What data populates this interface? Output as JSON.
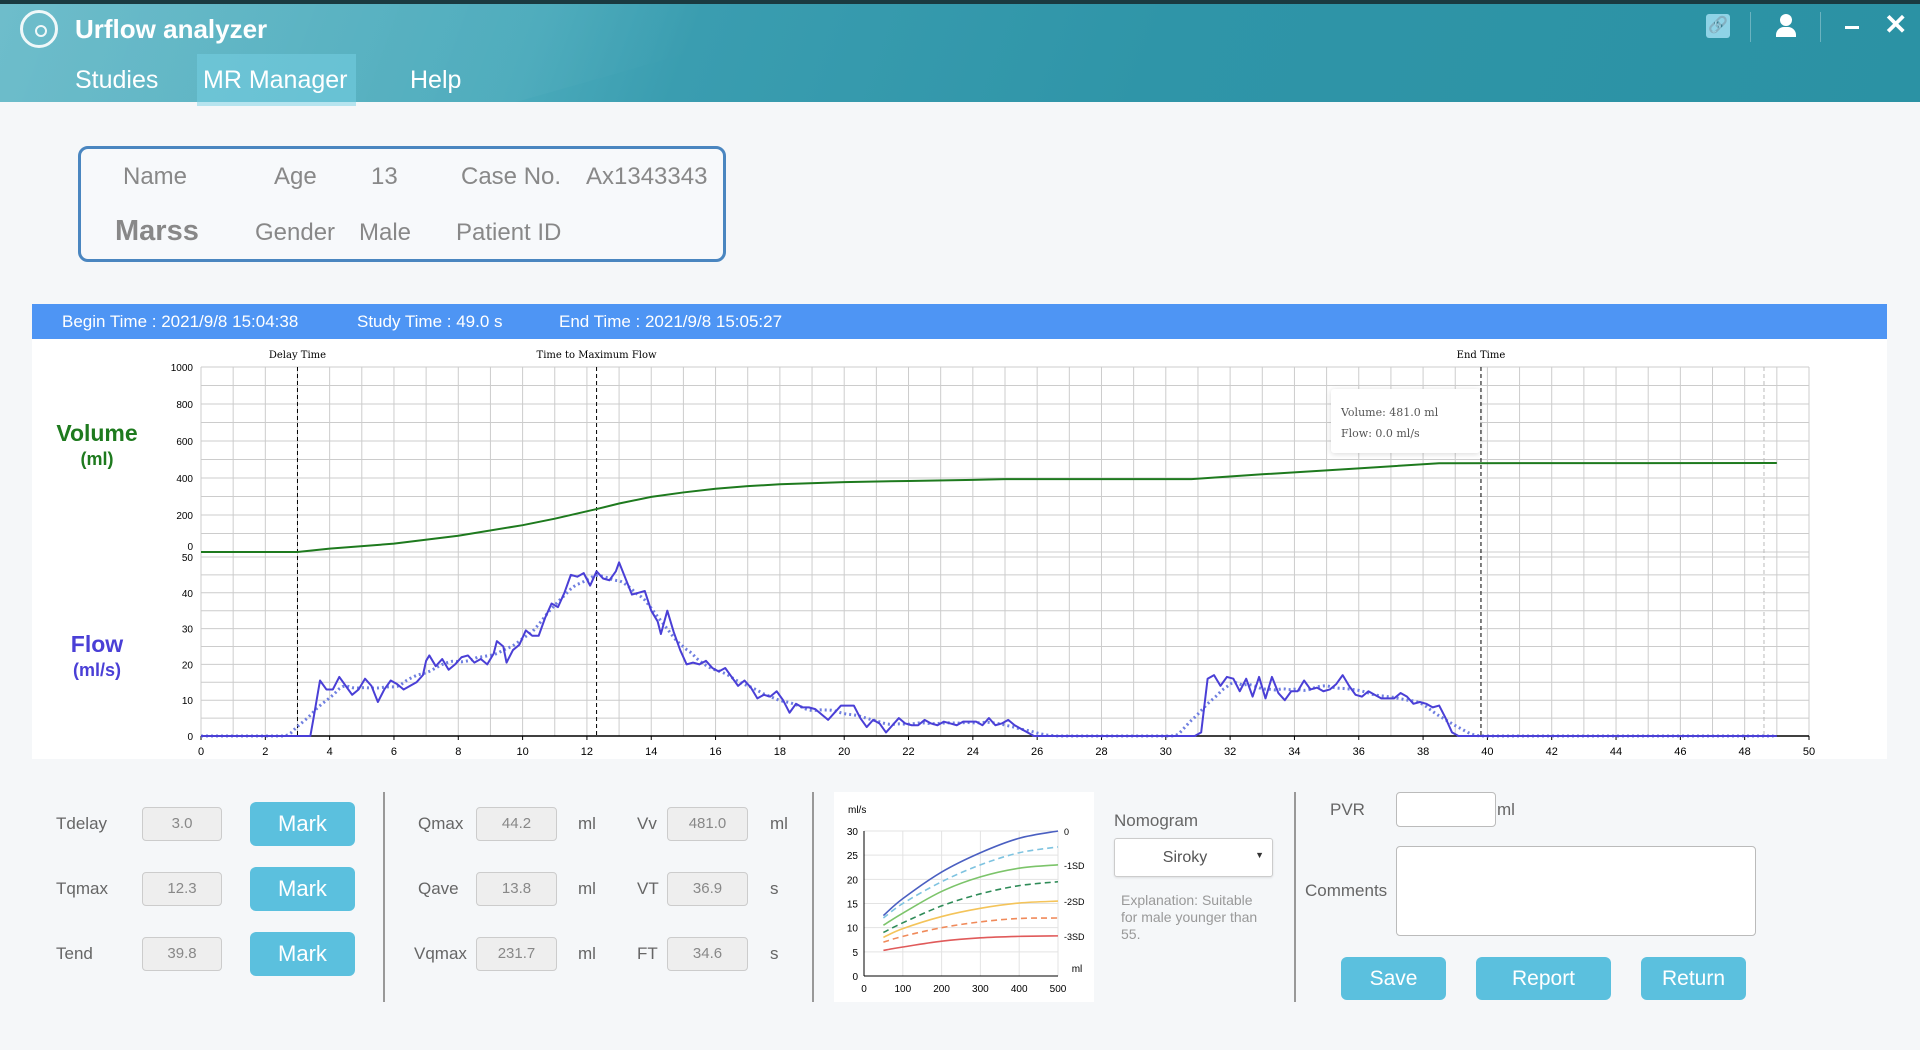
{
  "app": {
    "title": "Urflow analyzer",
    "logo_icon": "urflow-logo-icon"
  },
  "menu": [
    {
      "label": "Studies"
    },
    {
      "label": "MR Manager",
      "active": true
    },
    {
      "label": "Help"
    }
  ],
  "window_icons": [
    "link-icon",
    "user-icon",
    "minimize-icon",
    "close-icon"
  ],
  "patient": {
    "name_label": "Name",
    "name": "Marss",
    "age_label": "Age",
    "age": "13",
    "gender_label": "Gender",
    "gender": "Male",
    "case_label": "Case No.",
    "case_no": "Ax1343343",
    "pid_label": "Patient ID",
    "pid": ""
  },
  "info": {
    "begin": "Begin Time :  2021/9/8 15:04:38",
    "study": "Study Time :  49.0 s",
    "end": "End Time :  2021/9/8 15:05:27"
  },
  "axis_labels": {
    "volume": "Volume",
    "volume_unit": "(ml)",
    "flow": "Flow",
    "flow_unit": "(ml/s)"
  },
  "tooltip": {
    "volume": "Volume: 481.0 ml",
    "flow": "Flow: 0.0 ml/s"
  },
  "colors": {
    "volume": "#1e7a1e",
    "flow": "#4a3fd6",
    "flow_smooth": "#6f7fe0",
    "accent": "#5bc0de",
    "bar": "#4e95f4"
  },
  "chart_data": [
    {
      "type": "line",
      "xlim": [
        0,
        50
      ],
      "xticks": [
        0,
        2,
        4,
        6,
        8,
        10,
        12,
        14,
        16,
        18,
        20,
        22,
        24,
        26,
        28,
        30,
        32,
        34,
        36,
        38,
        40,
        42,
        44,
        46,
        48,
        50
      ],
      "grid": true,
      "markers": [
        {
          "label": "Delay Time",
          "x": 3.0
        },
        {
          "label": "Time to Maximum Flow",
          "x": 12.3
        },
        {
          "label": "End Time",
          "x": 39.8
        },
        {
          "label": "",
          "x": 48.6
        }
      ],
      "volume": {
        "ylim": [
          0,
          1000
        ],
        "yticks": [
          0,
          200,
          400,
          600,
          800,
          1000
        ],
        "points": [
          [
            0,
            0
          ],
          [
            3,
            0
          ],
          [
            4,
            18
          ],
          [
            6,
            45
          ],
          [
            8,
            88
          ],
          [
            10,
            145
          ],
          [
            11,
            180
          ],
          [
            12.3,
            232
          ],
          [
            13,
            262
          ],
          [
            14,
            298
          ],
          [
            15,
            322
          ],
          [
            16,
            342
          ],
          [
            17,
            356
          ],
          [
            18,
            366
          ],
          [
            20,
            378
          ],
          [
            22,
            384
          ],
          [
            24,
            390
          ],
          [
            25,
            394
          ],
          [
            30.8,
            394
          ],
          [
            33,
            420
          ],
          [
            36,
            452
          ],
          [
            38.5,
            480
          ],
          [
            49,
            481
          ]
        ]
      },
      "flow": {
        "ylim": [
          0,
          50
        ],
        "yticks": [
          0,
          10,
          20,
          30,
          40,
          50
        ],
        "points": [
          [
            0,
            0
          ],
          [
            3.4,
            0
          ],
          [
            3.5,
            5
          ],
          [
            3.7,
            15.5
          ],
          [
            3.9,
            13
          ],
          [
            4.1,
            13
          ],
          [
            4.3,
            16.5
          ],
          [
            4.5,
            14
          ],
          [
            4.7,
            11.5
          ],
          [
            4.9,
            13
          ],
          [
            5.1,
            16
          ],
          [
            5.3,
            14
          ],
          [
            5.5,
            9.5
          ],
          [
            5.7,
            13
          ],
          [
            5.9,
            15.5
          ],
          [
            6.1,
            14.5
          ],
          [
            6.3,
            13
          ],
          [
            6.5,
            14
          ],
          [
            6.7,
            15
          ],
          [
            6.9,
            17
          ],
          [
            7.0,
            21
          ],
          [
            7.1,
            22.5
          ],
          [
            7.3,
            19.5
          ],
          [
            7.5,
            21.5
          ],
          [
            7.7,
            18.5
          ],
          [
            7.9,
            20
          ],
          [
            8.1,
            22
          ],
          [
            8.3,
            22.5
          ],
          [
            8.5,
            20.5
          ],
          [
            8.7,
            21.5
          ],
          [
            8.9,
            20
          ],
          [
            9.1,
            23
          ],
          [
            9.2,
            26.5
          ],
          [
            9.4,
            25
          ],
          [
            9.5,
            20.5
          ],
          [
            9.7,
            24
          ],
          [
            9.9,
            25.5
          ],
          [
            10.1,
            29.5
          ],
          [
            10.3,
            28
          ],
          [
            10.5,
            28
          ],
          [
            10.7,
            33
          ],
          [
            10.9,
            37
          ],
          [
            11.1,
            36
          ],
          [
            11.3,
            40
          ],
          [
            11.5,
            45
          ],
          [
            11.7,
            44.5
          ],
          [
            11.9,
            45.5
          ],
          [
            12.1,
            42
          ],
          [
            12.3,
            46
          ],
          [
            12.5,
            44
          ],
          [
            12.7,
            43.5
          ],
          [
            12.9,
            46
          ],
          [
            13.0,
            48.5
          ],
          [
            13.2,
            44
          ],
          [
            13.4,
            39.5
          ],
          [
            13.6,
            40
          ],
          [
            13.8,
            40.5
          ],
          [
            14.0,
            35
          ],
          [
            14.2,
            32
          ],
          [
            14.3,
            28.5
          ],
          [
            14.5,
            35
          ],
          [
            14.7,
            29
          ],
          [
            14.9,
            24
          ],
          [
            15.1,
            20
          ],
          [
            15.3,
            20.5
          ],
          [
            15.5,
            20
          ],
          [
            15.7,
            21
          ],
          [
            15.9,
            19
          ],
          [
            16.1,
            18
          ],
          [
            16.3,
            19
          ],
          [
            16.5,
            16.5
          ],
          [
            16.7,
            14
          ],
          [
            16.9,
            15.5
          ],
          [
            17.1,
            13.5
          ],
          [
            17.3,
            10.5
          ],
          [
            17.5,
            11.5
          ],
          [
            17.7,
            11
          ],
          [
            17.9,
            12.5
          ],
          [
            18.1,
            10
          ],
          [
            18.3,
            6.5
          ],
          [
            18.5,
            9
          ],
          [
            18.7,
            8
          ],
          [
            18.9,
            8
          ],
          [
            19.1,
            7.5
          ],
          [
            19.3,
            6
          ],
          [
            19.5,
            4.5
          ],
          [
            19.7,
            6.5
          ],
          [
            19.9,
            8.5
          ],
          [
            20.1,
            8.5
          ],
          [
            20.3,
            8.5
          ],
          [
            20.5,
            5
          ],
          [
            20.7,
            2.5
          ],
          [
            20.9,
            4.5
          ],
          [
            21.1,
            3.5
          ],
          [
            21.3,
            1
          ],
          [
            21.5,
            3
          ],
          [
            21.7,
            5
          ],
          [
            21.9,
            3.5
          ],
          [
            22.1,
            3
          ],
          [
            22.3,
            3
          ],
          [
            22.5,
            4.5
          ],
          [
            22.7,
            3.5
          ],
          [
            22.9,
            3
          ],
          [
            23.1,
            4
          ],
          [
            23.3,
            3.5
          ],
          [
            23.5,
            3
          ],
          [
            23.7,
            4
          ],
          [
            23.9,
            4
          ],
          [
            24.1,
            4
          ],
          [
            24.3,
            3
          ],
          [
            24.5,
            5
          ],
          [
            24.7,
            3
          ],
          [
            24.9,
            3.5
          ],
          [
            25.1,
            4.5
          ],
          [
            25.3,
            3
          ],
          [
            25.5,
            2
          ],
          [
            25.9,
            0
          ],
          [
            30.9,
            0
          ],
          [
            31.1,
            1
          ],
          [
            31.3,
            16
          ],
          [
            31.5,
            17
          ],
          [
            31.7,
            14
          ],
          [
            31.9,
            16.5
          ],
          [
            32.1,
            16
          ],
          [
            32.3,
            12.5
          ],
          [
            32.5,
            16
          ],
          [
            32.7,
            11
          ],
          [
            32.9,
            16.5
          ],
          [
            33.1,
            10.5
          ],
          [
            33.3,
            16.5
          ],
          [
            33.5,
            12
          ],
          [
            33.7,
            10
          ],
          [
            33.9,
            12.5
          ],
          [
            34.1,
            12.5
          ],
          [
            34.3,
            15.5
          ],
          [
            34.5,
            13
          ],
          [
            34.7,
            13.5
          ],
          [
            34.9,
            12.5
          ],
          [
            35.1,
            13
          ],
          [
            35.3,
            14.5
          ],
          [
            35.5,
            17
          ],
          [
            35.7,
            14
          ],
          [
            35.9,
            11.5
          ],
          [
            36.1,
            11
          ],
          [
            36.3,
            12.5
          ],
          [
            36.5,
            11.5
          ],
          [
            36.7,
            10.5
          ],
          [
            36.9,
            10.5
          ],
          [
            37.1,
            10.5
          ],
          [
            37.3,
            12
          ],
          [
            37.5,
            11
          ],
          [
            37.7,
            9
          ],
          [
            37.9,
            9.5
          ],
          [
            38.1,
            9
          ],
          [
            38.3,
            8
          ],
          [
            38.5,
            8.5
          ],
          [
            38.7,
            5
          ],
          [
            38.9,
            1
          ],
          [
            39.1,
            0
          ],
          [
            49,
            0
          ]
        ]
      }
    },
    {
      "type": "line",
      "name": "Siroky nomogram",
      "xlabel": "ml",
      "ylabel": "ml/s",
      "xlim": [
        0,
        500
      ],
      "ylim": [
        0,
        30
      ],
      "xticks": [
        0,
        100,
        200,
        300,
        400,
        500
      ],
      "yticks": [
        0,
        5,
        10,
        15,
        20,
        25,
        30
      ],
      "x": [
        50,
        100,
        200,
        300,
        400,
        500
      ],
      "series": [
        {
          "name": "0",
          "color": "#4a5fc1",
          "dashed": false,
          "values": [
            12.5,
            16,
            21.5,
            25.5,
            28.5,
            30
          ]
        },
        {
          "name": "",
          "color": "#7ec3e0",
          "dashed": true,
          "values": [
            12,
            15,
            19.5,
            23,
            25.5,
            26.7
          ]
        },
        {
          "name": "-1SD",
          "color": "#7cc46a",
          "dashed": false,
          "values": [
            10.5,
            13,
            17.5,
            20.5,
            22.3,
            23
          ]
        },
        {
          "name": "",
          "color": "#2e8b57",
          "dashed": true,
          "values": [
            9,
            11,
            14.5,
            17,
            18.7,
            19.5
          ]
        },
        {
          "name": "-2SD",
          "color": "#f4c45a",
          "dashed": false,
          "values": [
            8,
            9.8,
            12.3,
            14,
            15.1,
            15.5
          ]
        },
        {
          "name": "",
          "color": "#f08a5a",
          "dashed": true,
          "values": [
            7,
            8.2,
            10,
            11.2,
            11.9,
            12
          ]
        },
        {
          "name": "-3SD",
          "color": "#e05a5a",
          "dashed": false,
          "values": [
            5.3,
            6,
            7.2,
            7.9,
            8.2,
            8.3
          ]
        }
      ]
    }
  ],
  "params": {
    "rows": [
      {
        "label": "Tdelay",
        "value": "3.0",
        "button": "Mark"
      },
      {
        "label": "Tqmax",
        "value": "12.3",
        "button": "Mark"
      },
      {
        "label": "Tend",
        "value": "39.8",
        "button": "Mark"
      }
    ],
    "metrics": [
      {
        "label": "Qmax",
        "value": "44.2",
        "unit": "ml",
        "label2": "Vv",
        "value2": "481.0",
        "unit2": "ml"
      },
      {
        "label": "Qave",
        "value": "13.8",
        "unit": "ml",
        "label2": "VT",
        "value2": "36.9",
        "unit2": "s"
      },
      {
        "label": "Vqmax",
        "value": "231.7",
        "unit": "ml",
        "label2": "FT",
        "value2": "34.6",
        "unit2": "s"
      }
    ]
  },
  "nomogram": {
    "label": "Nomogram",
    "selected": "Siroky",
    "explanation": "Explanation: Suitable for male younger than 55."
  },
  "pvr": {
    "label": "PVR",
    "value": "",
    "unit": "ml"
  },
  "comments": {
    "label": "Comments",
    "value": ""
  },
  "actions": {
    "save": "Save",
    "report": "Report",
    "return": "Return"
  }
}
